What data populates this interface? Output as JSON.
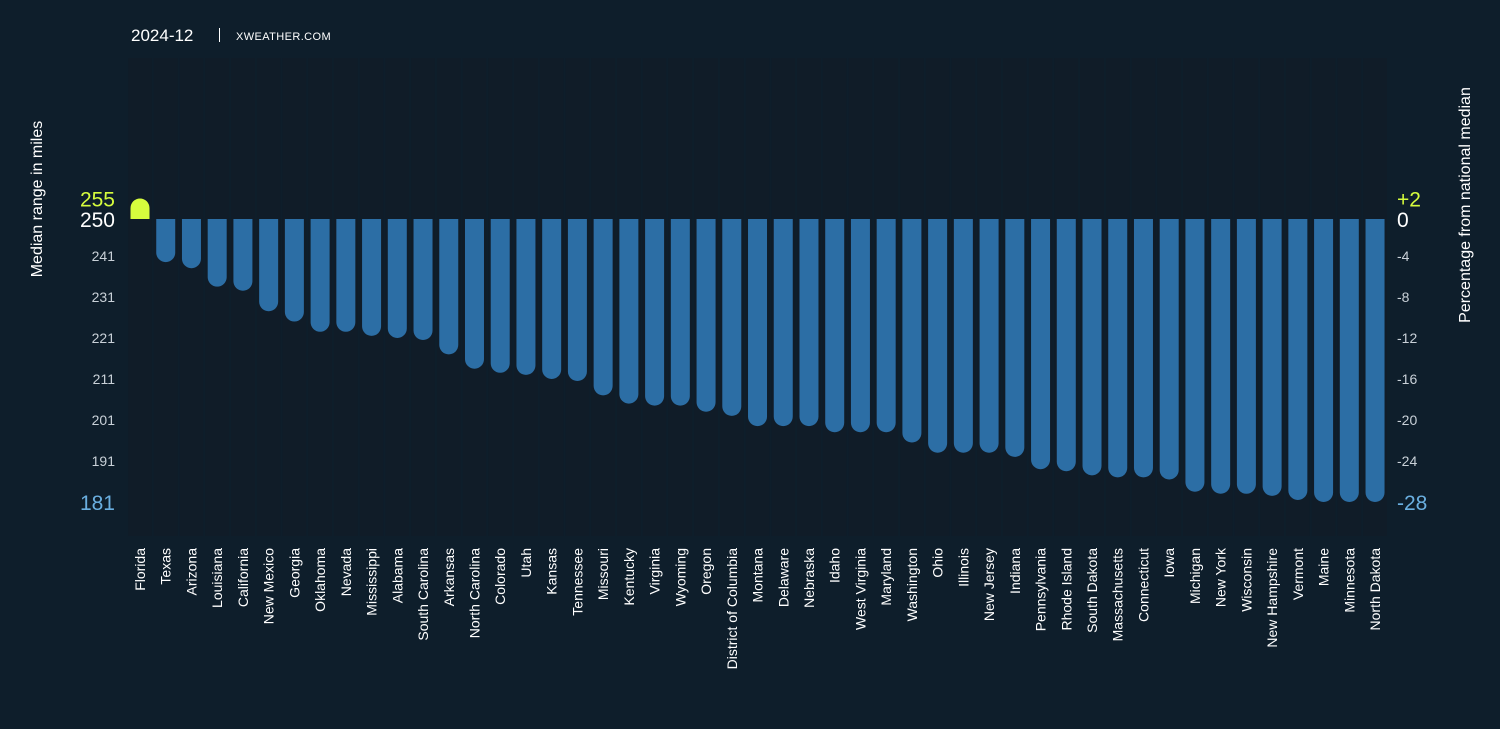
{
  "header": {
    "date": "2024-12",
    "site": "XWEATHER.COM"
  },
  "colors": {
    "background": "#0e1e2b",
    "band": "#101c28",
    "bar": "#2c6ea5",
    "highlight": "#d6fc3d",
    "minimum": "#6aafe0",
    "text": "#ffffff",
    "tick": "#c9d1d8"
  },
  "chart_data": {
    "type": "bar",
    "ylabel": "Median range in miles",
    "y2label": "Percentage from national median",
    "baseline": 250,
    "ylim": [
      181,
      255
    ],
    "left_ticks": [
      "255",
      "250",
      "241",
      "231",
      "221",
      "211",
      "201",
      "191",
      "181"
    ],
    "left_tick_values": [
      255,
      250,
      241,
      231,
      221,
      211,
      201,
      191,
      181
    ],
    "right_ticks": [
      "+2",
      "0",
      "-4",
      "-8",
      "-12",
      "-16",
      "-20",
      "-24",
      "-28"
    ],
    "right_tick_values": [
      255,
      250,
      241,
      231,
      221,
      211,
      201,
      191,
      181
    ],
    "categories": [
      "Florida",
      "Texas",
      "Arizona",
      "Louisiana",
      "California",
      "New Mexico",
      "Georgia",
      "Oklahoma",
      "Nevada",
      "Mississippi",
      "Alabama",
      "South Carolina",
      "Arkansas",
      "North Carolina",
      "Colorado",
      "Utah",
      "Kansas",
      "Tennessee",
      "Missouri",
      "Kentucky",
      "Virginia",
      "Wyoming",
      "Oregon",
      "District of Columbia",
      "Montana",
      "Delaware",
      "Nebraska",
      "Idaho",
      "West Virginia",
      "Maryland",
      "Washington",
      "Ohio",
      "Illinois",
      "New Jersey",
      "Indiana",
      "Pennsylvania",
      "Rhode Island",
      "South Dakota",
      "Massachusetts",
      "Connecticut",
      "Iowa",
      "Michigan",
      "New York",
      "Wisconsin",
      "New Hampshire",
      "Vermont",
      "Maine",
      "Minnesota",
      "North Dakota"
    ],
    "values": [
      255,
      239.5,
      238,
      233.5,
      232.5,
      227.5,
      225,
      222.5,
      222.5,
      221.5,
      221,
      220.5,
      217,
      213.5,
      212.5,
      212,
      211,
      210.5,
      207,
      205,
      204.5,
      204.5,
      203,
      202,
      199.5,
      199.5,
      199.5,
      198,
      198,
      198,
      195.5,
      193,
      193,
      193,
      192,
      189,
      188.5,
      187.5,
      187,
      187,
      186.5,
      183.5,
      183,
      183,
      182.5,
      181.5,
      181,
      181,
      181
    ]
  }
}
